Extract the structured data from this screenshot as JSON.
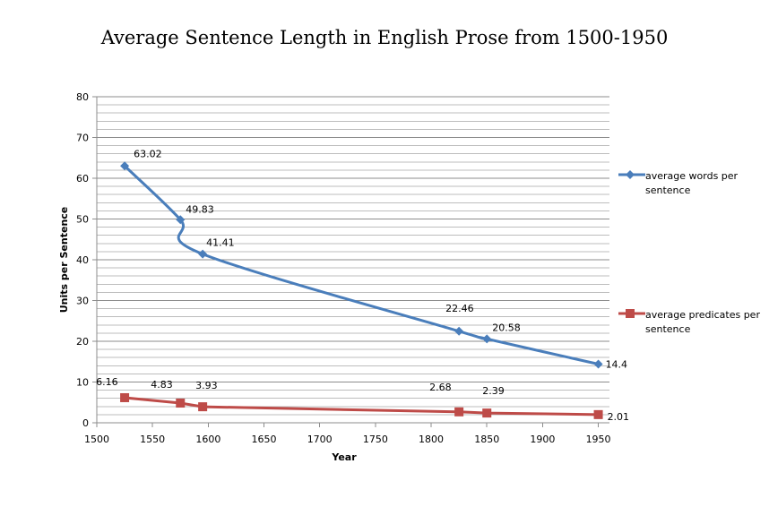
{
  "chart_data": {
    "type": "line",
    "title": "Average Sentence Length in English Prose from 1500-1950",
    "xlabel": "Year",
    "ylabel": "Units per Sentence",
    "xlim": [
      1500,
      1960
    ],
    "ylim": [
      0,
      80
    ],
    "x_ticks": [
      1500,
      1550,
      1600,
      1650,
      1700,
      1750,
      1800,
      1850,
      1900,
      1950
    ],
    "y_ticks": [
      0,
      10,
      20,
      30,
      40,
      50,
      60,
      70,
      80
    ],
    "y_minor_step": 2,
    "grid": true,
    "legend_position": "right",
    "x": [
      1525,
      1575,
      1595,
      1825,
      1850,
      1950
    ],
    "series": [
      {
        "name": "average words per sentence",
        "color": "#4a7ebb",
        "marker": "diamond",
        "smooth": true,
        "values": [
          63.02,
          49.83,
          41.41,
          22.46,
          20.58,
          14.4
        ],
        "labels": [
          "63.02",
          "49.83",
          "41.41",
          "22.46",
          "20.58",
          "14.4"
        ]
      },
      {
        "name": "average predicates per sentence",
        "color": "#be4b48",
        "marker": "square",
        "smooth": false,
        "values": [
          6.16,
          4.83,
          3.93,
          2.68,
          2.39,
          2.01
        ],
        "labels": [
          "6.16",
          "4.83",
          "3.93",
          "2.68",
          "2.39",
          "2.01"
        ]
      }
    ]
  }
}
